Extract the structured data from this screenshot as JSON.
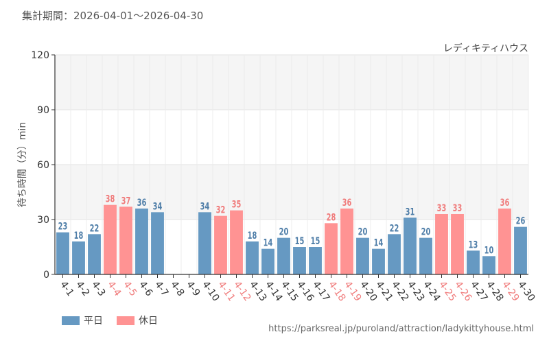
{
  "header": {
    "period_label": "集計期間：2026-04-01〜2026-04-30",
    "attraction": "レディキティハウス",
    "source_url": "https://parksreal.jp/puroland/attraction/ladykittyhouse.html"
  },
  "legend": {
    "weekday": "平日",
    "holiday": "休日"
  },
  "colors": {
    "weekday": "#6699c2",
    "holiday": "#ff9393",
    "weekday_label": "#4f7ea8",
    "holiday_label": "#f07c7c"
  },
  "chart_data": {
    "type": "bar",
    "ylabel": "待ち時間（分）min",
    "ylim": [
      0,
      120
    ],
    "yticks": [
      0,
      30,
      60,
      90,
      120
    ],
    "categories": [
      "4-1",
      "4-2",
      "4-3",
      "4-4",
      "4-5",
      "4-6",
      "4-7",
      "4-8",
      "4-9",
      "4-10",
      "4-11",
      "4-12",
      "4-13",
      "4-14",
      "4-15",
      "4-16",
      "4-17",
      "4-18",
      "4-19",
      "4-20",
      "4-21",
      "4-22",
      "4-23",
      "4-24",
      "4-25",
      "4-26",
      "4-27",
      "4-28",
      "4-29",
      "4-30"
    ],
    "values": [
      23,
      18,
      22,
      38,
      37,
      36,
      34,
      null,
      null,
      34,
      32,
      35,
      18,
      14,
      20,
      15,
      15,
      28,
      36,
      20,
      14,
      22,
      31,
      20,
      33,
      33,
      13,
      10,
      36,
      26
    ],
    "day_type": [
      "weekday",
      "weekday",
      "weekday",
      "holiday",
      "holiday",
      "weekday",
      "weekday",
      "weekday",
      "weekday",
      "weekday",
      "holiday",
      "holiday",
      "weekday",
      "weekday",
      "weekday",
      "weekday",
      "weekday",
      "holiday",
      "holiday",
      "weekday",
      "weekday",
      "weekday",
      "weekday",
      "weekday",
      "holiday",
      "holiday",
      "weekday",
      "weekday",
      "holiday",
      "weekday"
    ],
    "grid": true,
    "legend_position": "bottom-left"
  }
}
